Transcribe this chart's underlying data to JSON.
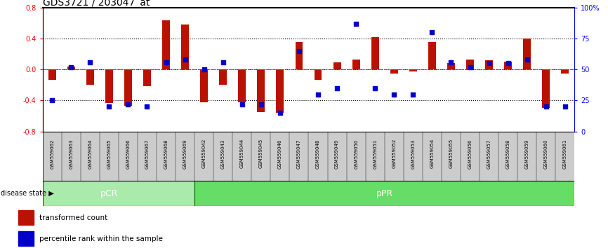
{
  "title": "GDS3721 / 203047_at",
  "samples": [
    "GSM559062",
    "GSM559063",
    "GSM559064",
    "GSM559065",
    "GSM559066",
    "GSM559067",
    "GSM559068",
    "GSM559069",
    "GSM559042",
    "GSM559043",
    "GSM559044",
    "GSM559045",
    "GSM559046",
    "GSM559047",
    "GSM559048",
    "GSM559049",
    "GSM559050",
    "GSM559051",
    "GSM559052",
    "GSM559053",
    "GSM559054",
    "GSM559055",
    "GSM559056",
    "GSM559057",
    "GSM559058",
    "GSM559059",
    "GSM559060",
    "GSM559061"
  ],
  "red_values": [
    -0.13,
    0.04,
    -0.2,
    -0.43,
    -0.47,
    -0.22,
    0.63,
    0.58,
    -0.42,
    -0.2,
    -0.42,
    -0.55,
    -0.56,
    0.35,
    -0.13,
    0.09,
    0.13,
    0.42,
    -0.05,
    -0.03,
    0.35,
    0.08,
    0.13,
    0.12,
    0.1,
    0.4,
    -0.5,
    -0.05
  ],
  "blue_values": [
    25,
    52,
    56,
    20,
    22,
    20,
    56,
    58,
    50,
    56,
    22,
    22,
    15,
    65,
    30,
    35,
    87,
    35,
    30,
    30,
    80,
    56,
    52,
    55,
    55,
    58,
    20,
    20
  ],
  "pCR_count": 8,
  "pCR_color": "#aaeaaa",
  "pPR_color": "#66dd66",
  "ylim": [
    -0.8,
    0.8
  ],
  "y2lim": [
    0,
    100
  ],
  "yticks_red": [
    -0.8,
    -0.4,
    0.0,
    0.4,
    0.8
  ],
  "yticks_blue": [
    0,
    25,
    50,
    75,
    100
  ],
  "dotted_lines": [
    -0.4,
    0.0,
    0.4
  ],
  "bar_color": "#bb1100",
  "dot_color": "#0000cc",
  "bg_color": "#ffffff",
  "tick_bg_color": "#cccccc",
  "legend_red": "transformed count",
  "legend_blue": "percentile rank within the sample",
  "title_fontsize": 10,
  "tick_fontsize": 6,
  "label_fontsize": 8
}
